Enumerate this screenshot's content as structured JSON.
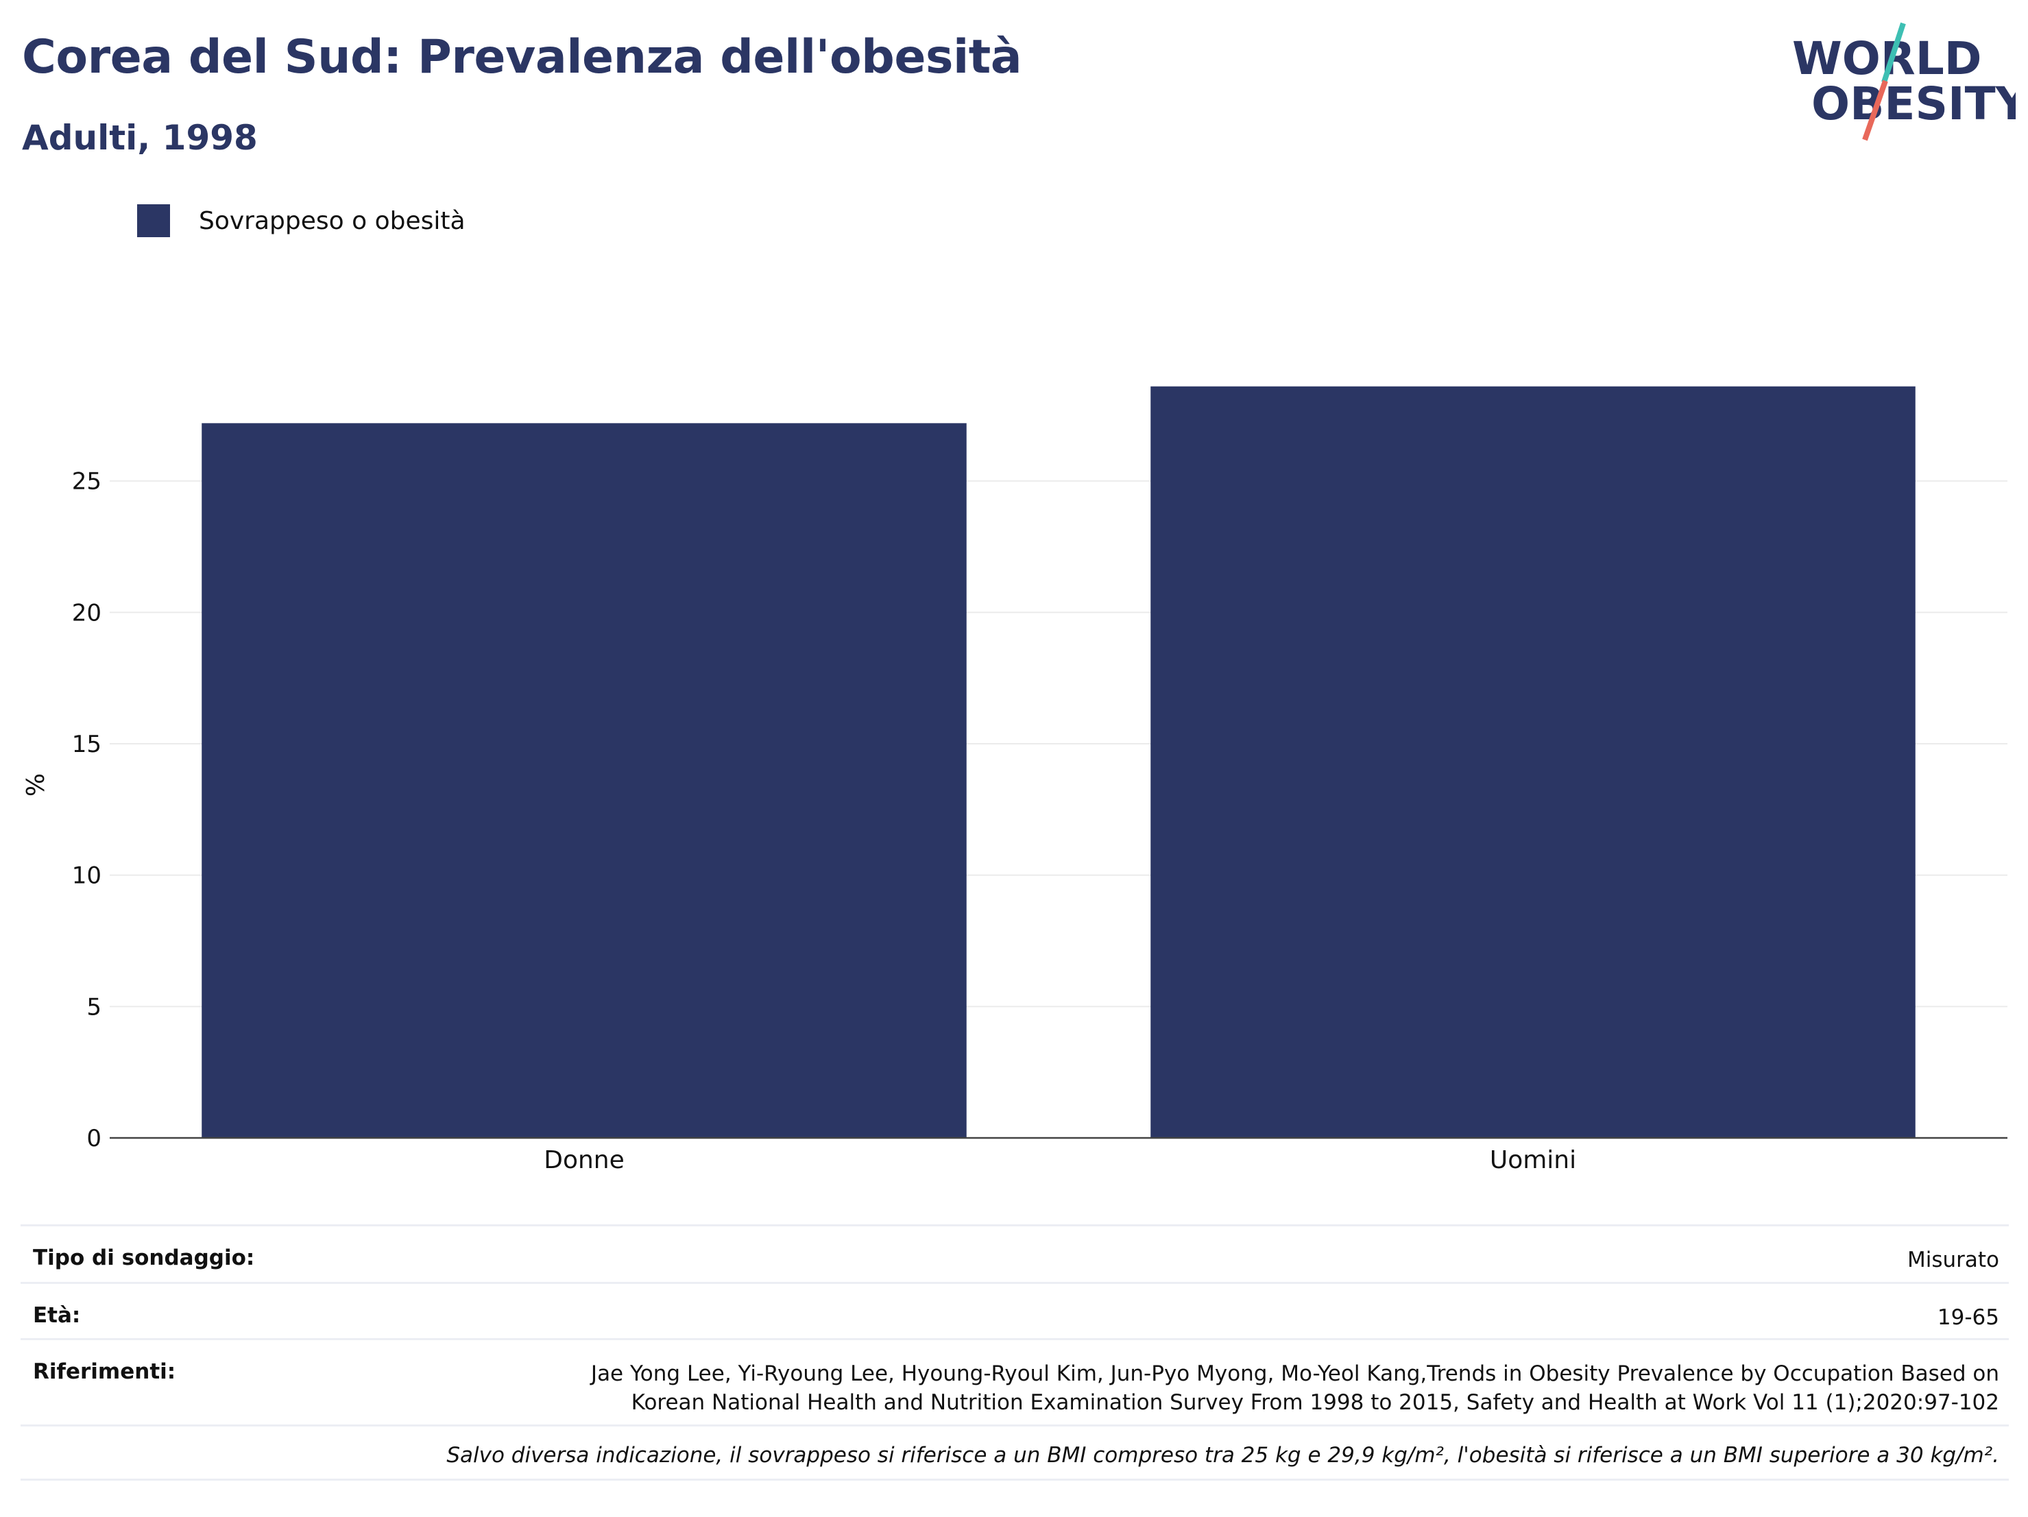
{
  "header": {
    "title": "Corea del Sud: Prevalenza dell'obesità",
    "subtitle": "Adulti, 1998"
  },
  "logo": {
    "line1": "WORLD",
    "line2": "OBESITY",
    "colors": {
      "text": "#2b3664",
      "slash_top": "#3dbfb3",
      "slash_bottom": "#e8685a"
    }
  },
  "chart_data": {
    "type": "bar",
    "categories": [
      "Donne",
      "Uomini"
    ],
    "series": [
      {
        "name": "Sovrappeso o obesità",
        "values": [
          27.2,
          28.6
        ],
        "color": "#2b3664"
      }
    ],
    "ylabel": "%",
    "xlabel": "",
    "ylim": [
      0,
      30
    ],
    "yticks": [
      0,
      5,
      10,
      15,
      20,
      25
    ],
    "grid": true,
    "legend_position": "top-left"
  },
  "info": {
    "survey_label": "Tipo di sondaggio:",
    "survey_value": "Misurato",
    "age_label": "Età:",
    "age_value": "19-65",
    "ref_label": "Riferimenti:",
    "ref_value": "Jae Yong Lee, Yi-Ryoung Lee, Hyoung-Ryoul Kim, Jun-Pyo Myong, Mo-Yeol Kang,Trends in Obesity Prevalence by Occupation Based on Korean National Health and Nutrition Examination Survey From 1998 to 2015, Safety and Health at Work Vol 11 (1);2020:97-102",
    "note": "Salvo diversa indicazione, il sovrappeso si riferisce a un BMI compreso tra 25 kg e 29,9 kg/m², l'obesità si riferisce a un BMI superiore a 30 kg/m²."
  }
}
